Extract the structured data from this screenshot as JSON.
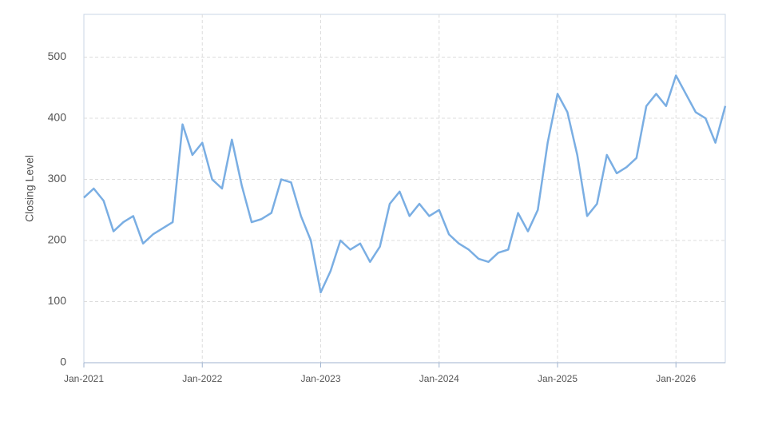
{
  "chart_data": {
    "type": "line",
    "y_label": "Closing Level",
    "x": [
      "2021-01",
      "2021-02",
      "2021-03",
      "2021-04",
      "2021-05",
      "2021-06",
      "2021-07",
      "2021-08",
      "2021-09",
      "2021-10",
      "2021-11",
      "2021-12",
      "2022-01",
      "2022-02",
      "2022-03",
      "2022-04",
      "2022-05",
      "2022-06",
      "2022-07",
      "2022-08",
      "2022-09",
      "2022-10",
      "2022-11",
      "2022-12",
      "2023-01",
      "2023-02",
      "2023-03",
      "2023-04",
      "2023-05",
      "2023-06",
      "2023-07",
      "2023-08",
      "2023-09",
      "2023-10",
      "2023-11",
      "2023-12",
      "2024-01",
      "2024-02",
      "2024-03",
      "2024-04",
      "2024-05",
      "2024-06",
      "2024-07",
      "2024-08",
      "2024-09",
      "2024-10",
      "2024-11",
      "2024-12",
      "2025-01",
      "2025-02",
      "2025-03",
      "2025-04",
      "2025-05",
      "2025-06",
      "2025-07",
      "2025-08",
      "2025-09",
      "2025-10",
      "2025-11",
      "2025-12",
      "2026-01",
      "2026-02",
      "2026-03",
      "2026-04",
      "2026-05",
      "2026-06"
    ],
    "series": [
      {
        "name": "Closing Level",
        "color": "#7aaee3",
        "values": [
          270,
          285,
          265,
          215,
          230,
          240,
          195,
          210,
          220,
          230,
          390,
          340,
          360,
          300,
          285,
          365,
          290,
          230,
          235,
          245,
          300,
          295,
          240,
          200,
          115,
          150,
          200,
          185,
          195,
          165,
          190,
          260,
          280,
          240,
          260,
          240,
          250,
          210,
          195,
          185,
          170,
          165,
          180,
          185,
          245,
          215,
          250,
          360,
          440,
          410,
          340,
          240,
          260,
          340,
          310,
          320,
          335,
          420,
          440,
          420,
          470,
          440,
          410,
          400,
          360,
          420
        ]
      }
    ],
    "xlim": [
      "2021-01",
      "2026-06"
    ],
    "xticks": [
      {
        "value": "2021-01",
        "label": "Jan-2021"
      },
      {
        "value": "2022-01",
        "label": "Jan-2022"
      },
      {
        "value": "2023-01",
        "label": "Jan-2023"
      },
      {
        "value": "2024-01",
        "label": "Jan-2024"
      },
      {
        "value": "2025-01",
        "label": "Jan-2025"
      },
      {
        "value": "2026-01",
        "label": "Jan-2026"
      }
    ],
    "ylim": [
      0,
      570
    ],
    "yticks": [
      0,
      100,
      200,
      300,
      400,
      500
    ],
    "grid": true
  }
}
